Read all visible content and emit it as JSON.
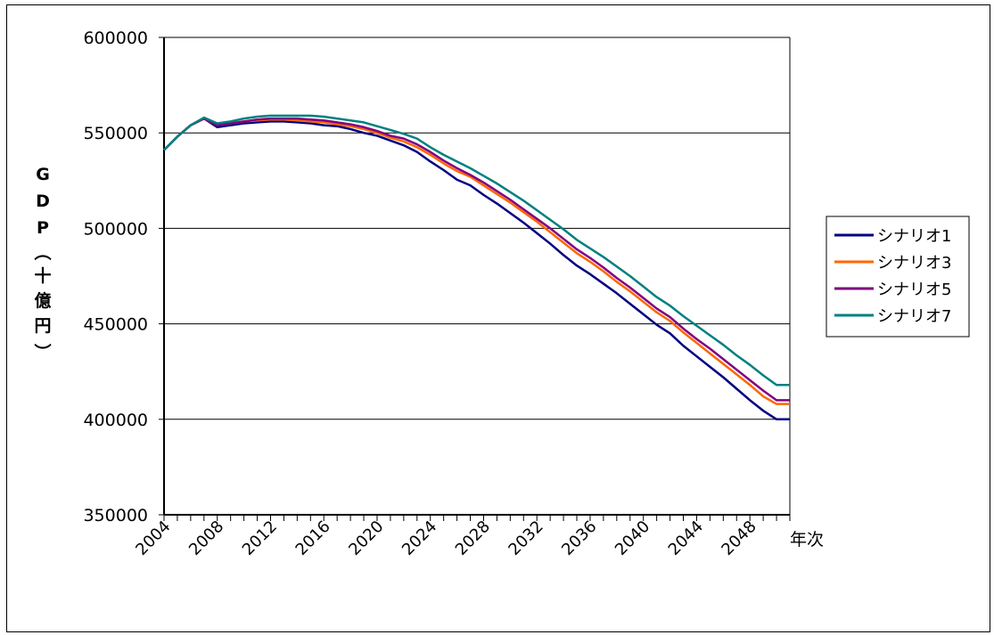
{
  "chart_data": {
    "type": "line",
    "title": "",
    "xlabel": "年次",
    "ylabel": [
      "G",
      "D",
      "P",
      "（",
      "十",
      "億",
      "円",
      "）"
    ],
    "ylim": [
      350000,
      600000
    ],
    "yticks": [
      "600000",
      "550000",
      "500000",
      "450000",
      "400000",
      "350000"
    ],
    "xlim": [
      2004,
      2051
    ],
    "xticks": [
      "2004",
      "2008",
      "2012",
      "2016",
      "2020",
      "2024",
      "2028",
      "2032",
      "2036",
      "2040",
      "2044",
      "2048"
    ],
    "grid": "horizontal",
    "legend_position": "right",
    "x": [
      2004,
      2005,
      2006,
      2007,
      2008,
      2009,
      2010,
      2011,
      2012,
      2013,
      2014,
      2015,
      2016,
      2017,
      2018,
      2019,
      2020,
      2021,
      2022,
      2023,
      2024,
      2025,
      2026,
      2027,
      2028,
      2029,
      2030,
      2031,
      2032,
      2033,
      2034,
      2035,
      2036,
      2037,
      2038,
      2039,
      2040,
      2041,
      2042,
      2043,
      2044,
      2045,
      2046,
      2047,
      2048,
      2049,
      2050,
      2051
    ],
    "series": [
      {
        "name": "シナリオ1",
        "color": "#000080",
        "values": [
          541000,
          548000,
          554000,
          557500,
          553000,
          554000,
          555000,
          555500,
          556000,
          556000,
          555500,
          555000,
          554000,
          553500,
          552000,
          550000,
          548500,
          546000,
          543500,
          540000,
          535000,
          530500,
          525500,
          522500,
          517500,
          513000,
          508000,
          503000,
          497500,
          492000,
          486000,
          480500,
          476000,
          471000,
          466000,
          460500,
          455000,
          449500,
          445000,
          438500,
          433000,
          427500,
          422000,
          416000,
          410000,
          404500,
          400000,
          400000
        ]
      },
      {
        "name": "シナリオ3",
        "color": "#FF6600",
        "values": [
          541000,
          548000,
          554000,
          557500,
          554000,
          555000,
          556000,
          556500,
          557000,
          557000,
          556500,
          556000,
          555500,
          554500,
          553500,
          552000,
          550000,
          547500,
          545500,
          542500,
          538500,
          534000,
          530000,
          527000,
          522500,
          518000,
          513500,
          508500,
          503500,
          498000,
          492500,
          487000,
          482500,
          477500,
          472000,
          467000,
          461500,
          456000,
          451500,
          445500,
          440000,
          434500,
          429000,
          423500,
          418000,
          412000,
          408000,
          408000
        ]
      },
      {
        "name": "シナリオ5",
        "color": "#800080",
        "values": [
          541000,
          548000,
          554000,
          557500,
          554000,
          555000,
          556000,
          557000,
          557500,
          557500,
          557500,
          557000,
          556500,
          555500,
          554500,
          553000,
          551000,
          548500,
          547000,
          544000,
          540000,
          535500,
          531500,
          528000,
          524000,
          519500,
          515000,
          510000,
          505000,
          500000,
          494500,
          489000,
          484500,
          479500,
          474000,
          469000,
          463500,
          458000,
          453500,
          447500,
          442000,
          437000,
          431500,
          426000,
          420500,
          415000,
          410000,
          410000
        ]
      },
      {
        "name": "シナリオ7",
        "color": "#008080",
        "values": [
          541000,
          548000,
          554000,
          558000,
          555000,
          556000,
          557500,
          558500,
          559000,
          559000,
          559000,
          559000,
          558500,
          557500,
          556500,
          555500,
          553500,
          551500,
          549500,
          547000,
          542500,
          538500,
          535000,
          531500,
          527500,
          523500,
          519000,
          514500,
          509500,
          504500,
          499500,
          494000,
          489500,
          485000,
          480000,
          475000,
          469500,
          464000,
          459500,
          454000,
          449000,
          444000,
          439000,
          433500,
          428500,
          423000,
          418000,
          418000
        ]
      }
    ]
  }
}
